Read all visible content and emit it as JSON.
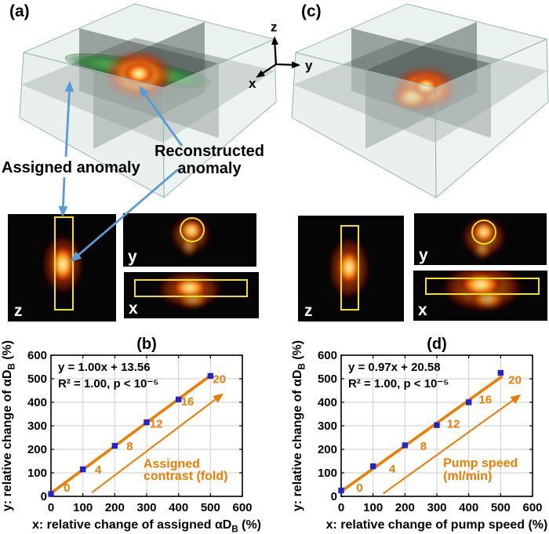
{
  "colors": {
    "accent_orange": "#ec7d00",
    "marker_blue": "#2323cc",
    "callout_blue": "#5b9bd5",
    "grid_gray": "#cdcdcd",
    "slice_outline_yellow": "#f2e113",
    "axis_black": "#000000"
  },
  "panels": {
    "a_label": "(a)",
    "c_label": "(c)"
  },
  "labels_3d": {
    "assigned": "Assigned anomaly",
    "reconstructed_line1": "Reconstructed",
    "reconstructed_line2": "anomaly"
  },
  "gizmo": {
    "x": "x",
    "y": "y",
    "z": "z"
  },
  "slices": {
    "left": {
      "z": "z",
      "y": "y",
      "x": "x"
    },
    "right": {
      "z": "z",
      "y": "y",
      "x": "x"
    }
  },
  "chart_data": [
    {
      "type": "scatter",
      "title": "(b)",
      "equation": "y = 1.00x + 13.56",
      "stats": "R² = 1.00, p < 10⁻⁵",
      "fit": {
        "slope": 1.0,
        "intercept": 13.56,
        "x_start": 0,
        "x_end": 505
      },
      "x": [
        0,
        100,
        200,
        300,
        400,
        500
      ],
      "y": [
        10,
        115,
        215,
        315,
        412,
        512
      ],
      "xlim": [
        0,
        600
      ],
      "ylim": [
        0,
        600
      ],
      "xticks": [
        0,
        100,
        200,
        300,
        400,
        500,
        600
      ],
      "yticks": [
        0,
        100,
        200,
        300,
        400,
        500,
        600
      ],
      "grid": true,
      "xlabel_parts": [
        {
          "t": "x: relative change of assigned "
        },
        {
          "t": "αD"
        },
        {
          "t": "B",
          "sub": true
        },
        {
          "t": " (%)"
        }
      ],
      "ylabel_parts": [
        {
          "t": "y: relative change of "
        },
        {
          "t": "αD"
        },
        {
          "t": "B",
          "sub": true
        },
        {
          "t": " (%)"
        }
      ],
      "arrow": {
        "tail": [
          128,
          16
        ],
        "tip": [
          535,
          432
        ]
      },
      "arrow_label_values": [
        {
          "t": "0",
          "x": 50,
          "y": 20
        },
        {
          "t": "4",
          "x": 148,
          "y": 97
        },
        {
          "t": "8",
          "x": 247,
          "y": 196
        },
        {
          "t": "12",
          "x": 330,
          "y": 291
        },
        {
          "t": "16",
          "x": 428,
          "y": 387
        },
        {
          "t": "20",
          "x": 528,
          "y": 482
        }
      ],
      "arrow_caption": [
        {
          "t": "Assigned",
          "x": 290,
          "y": 122
        },
        {
          "t": "contrast (fold)",
          "x": 290,
          "y": 70
        }
      ]
    },
    {
      "type": "scatter",
      "title": "(d)",
      "equation": "y = 0.97x + 20.58",
      "stats": "R² = 1.00, p < 10⁻⁵",
      "fit": {
        "slope": 0.97,
        "intercept": 20.58,
        "x_start": 0,
        "x_end": 505
      },
      "x": [
        0,
        100,
        200,
        300,
        400,
        500
      ],
      "y": [
        25,
        128,
        217,
        303,
        400,
        525
      ],
      "xlim": [
        0,
        600
      ],
      "ylim": [
        0,
        600
      ],
      "xticks": [
        0,
        100,
        200,
        300,
        400,
        500,
        600
      ],
      "yticks": [
        0,
        100,
        200,
        300,
        400,
        500,
        600
      ],
      "grid": true,
      "xlabel_parts": [
        {
          "t": "x: relative change of pump speed (%)"
        }
      ],
      "ylabel_parts": [
        {
          "t": "y: relative change of "
        },
        {
          "t": "αD"
        },
        {
          "t": "B",
          "sub": true
        },
        {
          "t": " (%)"
        }
      ],
      "arrow": {
        "tail": [
          132,
          12
        ],
        "tip": [
          558,
          427
        ]
      },
      "arrow_label_values": [
        {
          "t": "0",
          "x": 58,
          "y": 20
        },
        {
          "t": "4",
          "x": 160,
          "y": 100
        },
        {
          "t": "8",
          "x": 258,
          "y": 196
        },
        {
          "t": "12",
          "x": 352,
          "y": 291
        },
        {
          "t": "16",
          "x": 452,
          "y": 395
        },
        {
          "t": "20",
          "x": 545,
          "y": 478
        }
      ],
      "arrow_caption": [
        {
          "t": "Pump speed",
          "x": 320,
          "y": 125
        },
        {
          "t": "(ml/min)",
          "x": 320,
          "y": 70
        }
      ]
    }
  ]
}
